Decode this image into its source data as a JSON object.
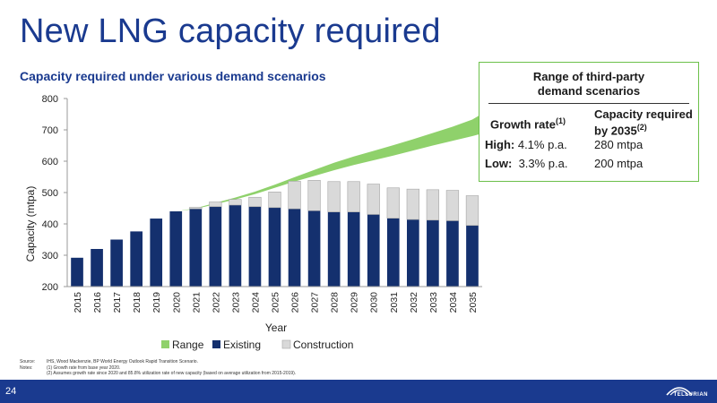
{
  "header": {
    "title": "New LNG capacity required"
  },
  "chart_data": {
    "type": "bar",
    "title": "Capacity required under various demand scenarios",
    "xlabel": "Year",
    "ylabel": "Capacity (mtpa)",
    "ylim": [
      200,
      800
    ],
    "yticks": [
      200,
      300,
      400,
      500,
      600,
      700,
      800
    ],
    "categories": [
      "2015",
      "2016",
      "2017",
      "2018",
      "2019",
      "2020",
      "2021",
      "2022",
      "2023",
      "2024",
      "2025",
      "2026",
      "2027",
      "2028",
      "2029",
      "2030",
      "2031",
      "2032",
      "2033",
      "2034",
      "2035"
    ],
    "series": [
      {
        "name": "Existing",
        "stacked": true,
        "color": "#14306e",
        "values": [
          292,
          320,
          350,
          376,
          417,
          440,
          448,
          455,
          460,
          455,
          452,
          448,
          442,
          438,
          438,
          430,
          418,
          414,
          412,
          410,
          395
        ]
      },
      {
        "name": "Construction",
        "stacked": true,
        "color": "#d9d9d9",
        "values": [
          0,
          0,
          0,
          0,
          0,
          0,
          5,
          15,
          18,
          30,
          50,
          88,
          97,
          97,
          97,
          97,
          97,
          97,
          97,
          97,
          95
        ]
      },
      {
        "name": "Range",
        "type": "area",
        "color": "#8fd16b",
        "x_start": "2020",
        "low": [
          440,
          448,
          463,
          478,
          495,
          515,
          535,
          553,
          571,
          588,
          603,
          618,
          634,
          650,
          665,
          680,
          697
        ],
        "high": [
          440,
          450,
          467,
          484,
          503,
          525,
          549,
          572,
          595,
          615,
          633,
          651,
          670,
          690,
          710,
          733,
          770
        ]
      }
    ],
    "legend": {
      "placement": "bottom",
      "entries": [
        "Range",
        "Existing",
        "Construction"
      ]
    },
    "grid": false
  },
  "panel": {
    "title_line1": "Range of third-party",
    "title_line2": "demand scenarios",
    "col1_header": "Growth rate",
    "col1_sup": "(1)",
    "col2_header_line1": "Capacity required",
    "col2_header_line2": "by 2035",
    "col2_sup": "(2)",
    "rows": [
      {
        "label": "High:",
        "rate": "4.1% p.a.",
        "capacity": "280 mtpa"
      },
      {
        "label": "Low:",
        "rate": "3.3% p.a.",
        "capacity": "200 mtpa"
      }
    ]
  },
  "notes": {
    "source_label": "Source:",
    "source_text": "IHS, Wood Mackenzie, BP World Energy Outlook Rapid Transition Scenario.",
    "notes_label": "Notes:",
    "note1": "(1)  Growth rate from base year 2020.",
    "note2": "(2)  Assumes growth rate since 2020 and 85.8% utilization rate of new capacity (based on average utilization from 2015-2019)."
  },
  "footer": {
    "page_number": "24",
    "logo_text": "TELLURIAN",
    "color": "#1a3a8f"
  }
}
